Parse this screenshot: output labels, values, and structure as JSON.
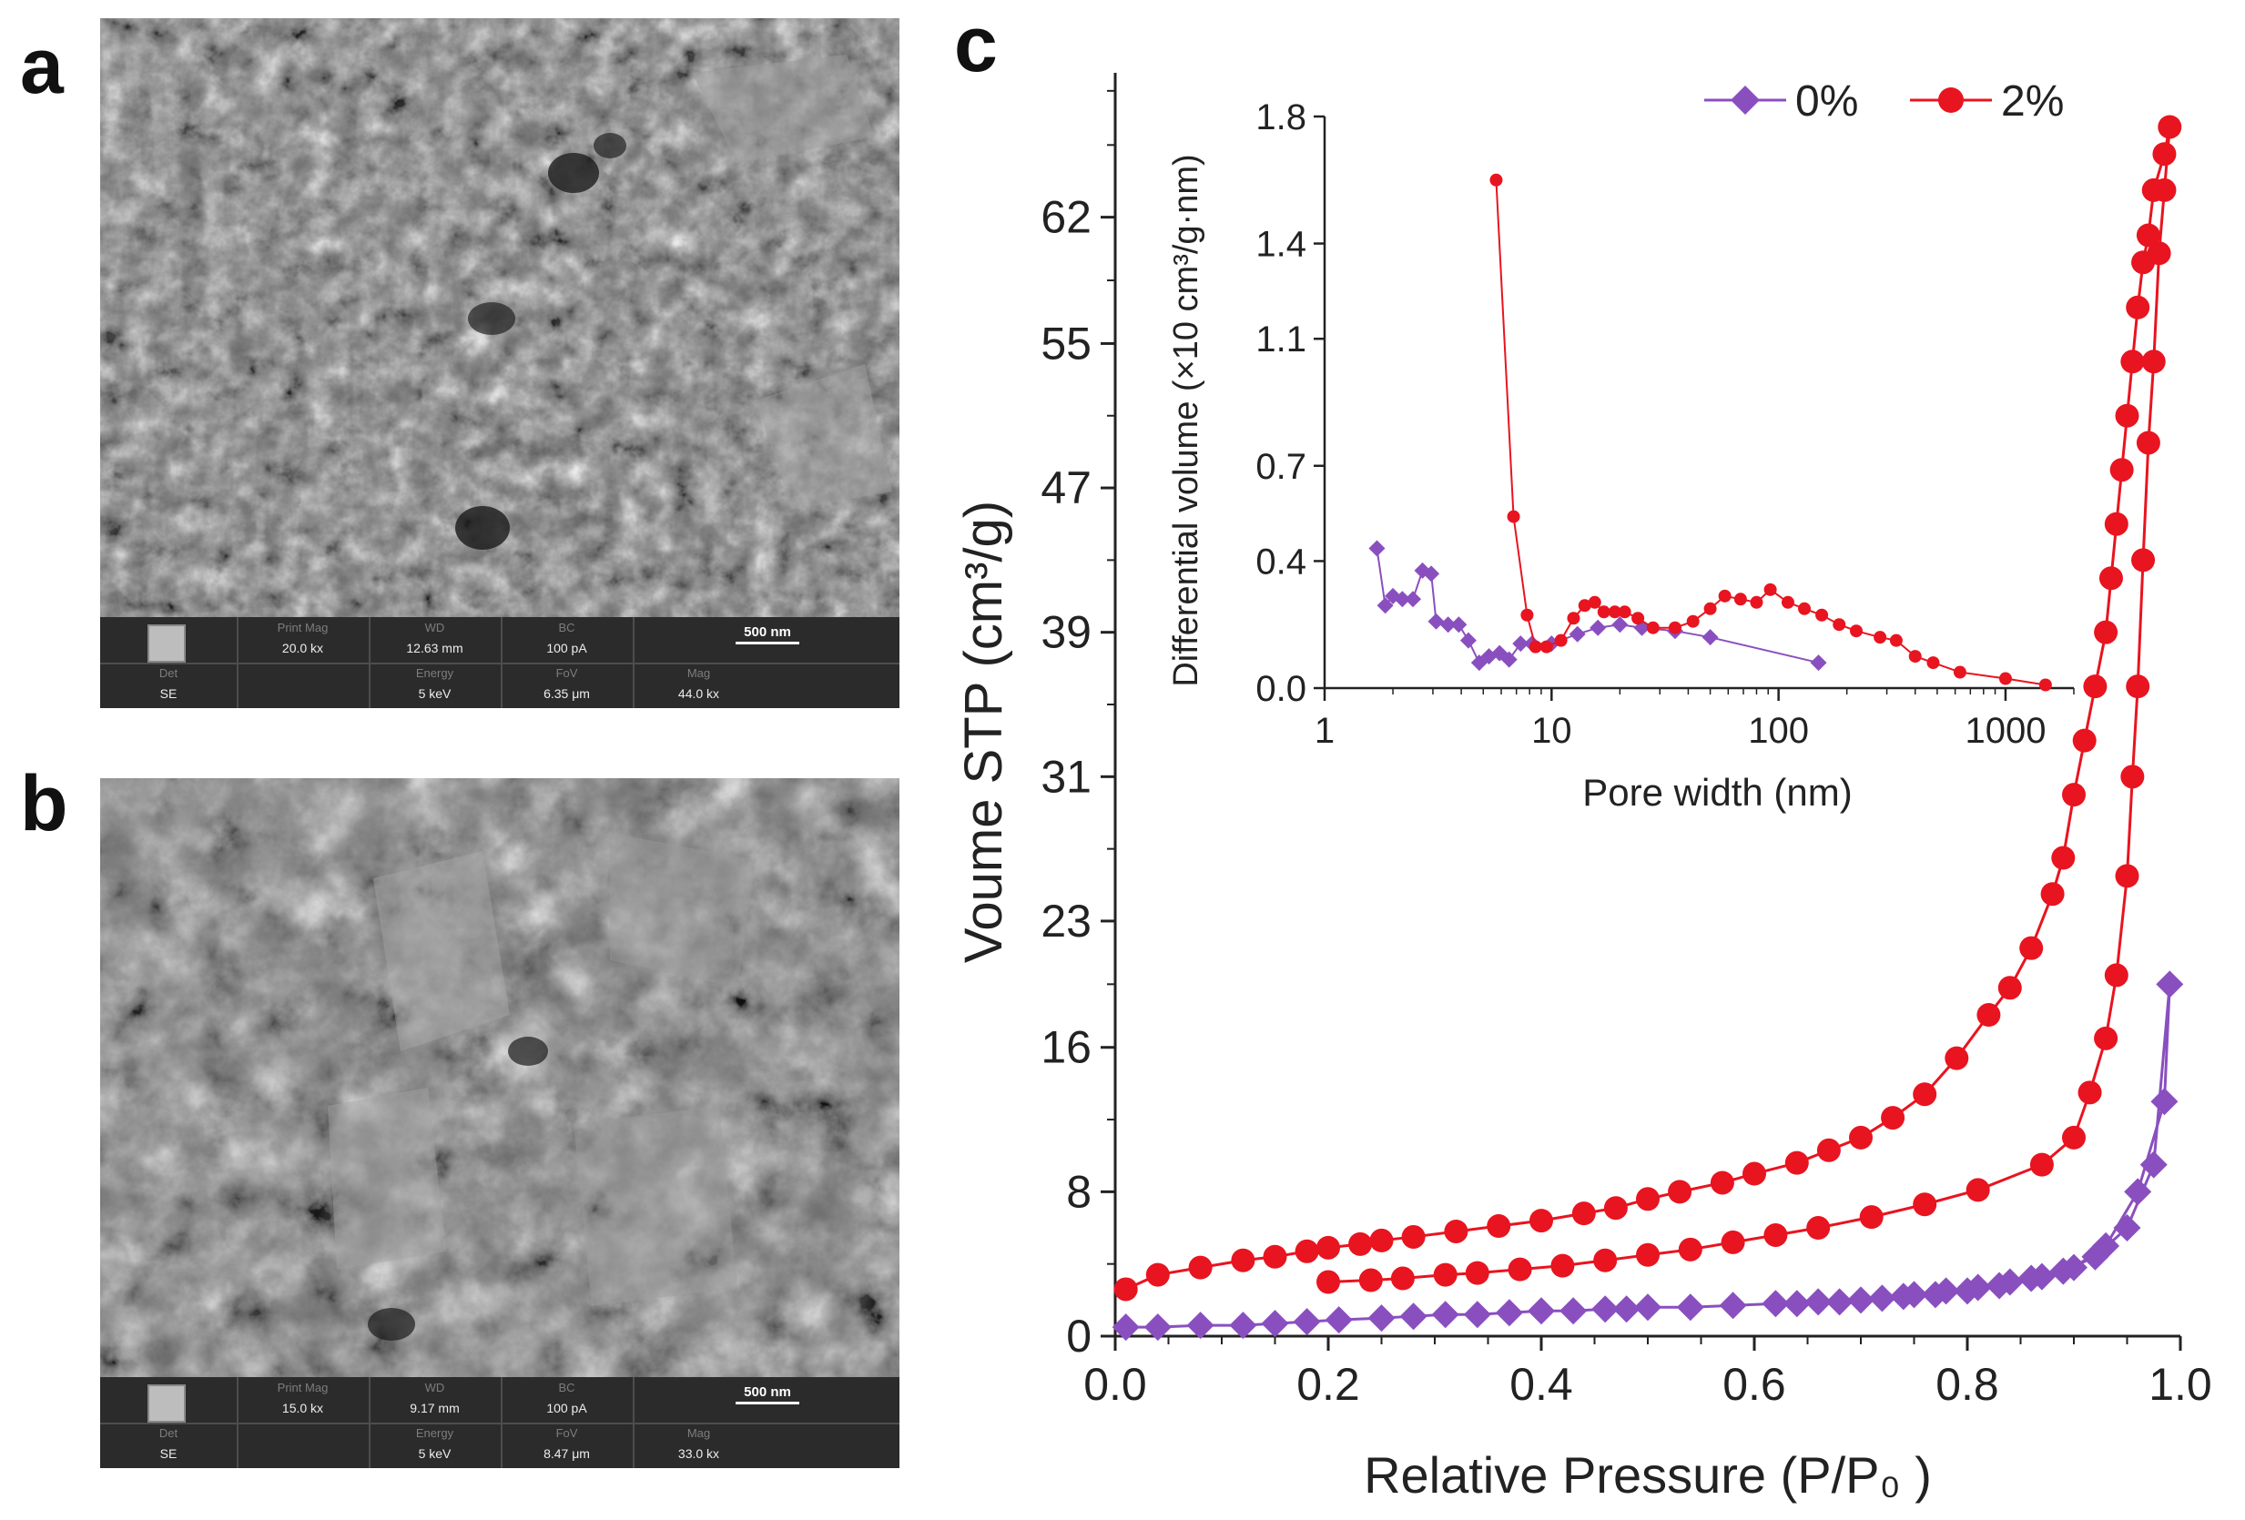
{
  "panels": {
    "a": "a",
    "b": "b",
    "c": "c"
  },
  "sem_headers": {
    "print_mag": "Print Mag",
    "wd": "WD",
    "bc": "BC",
    "det": "Det",
    "energy": "Energy",
    "fov": "FoV",
    "mag": "Mag"
  },
  "sem_a": {
    "print_mag": "20.0 kx",
    "wd": "12.63 mm",
    "bc": "100 pA",
    "scale": "500 nm",
    "det": "SE",
    "energy": "5 keV",
    "fov": "6.35 μm",
    "mag": "44.0 kx"
  },
  "sem_b": {
    "print_mag": "15.0 kx",
    "wd": "9.17 mm",
    "bc": "100 pA",
    "scale": "500 nm",
    "det": "SE",
    "energy": "5 keV",
    "fov": "8.47 μm",
    "mag": "33.0 kx"
  },
  "colors": {
    "purple": "#8a4fbf",
    "red": "#e8141f"
  },
  "chart_data": [
    {
      "type": "line",
      "id": "isotherm",
      "xlabel": "Relative Pressure (P/P₀ )",
      "ylabel": "Voume  STP (cm³/g)",
      "xlim": [
        0,
        1.0
      ],
      "ylim": [
        0,
        70
      ],
      "xticks": [
        0.0,
        0.2,
        0.4,
        0.6,
        0.8,
        1.0
      ],
      "xtick_labels": [
        "0.0",
        "0.2",
        "0.4",
        "0.6",
        "0.8",
        "1.0"
      ],
      "yticks": [
        0,
        8,
        16,
        23,
        31,
        39,
        47,
        55,
        62
      ],
      "ytick_labels": [
        "0",
        "8",
        "16",
        "23",
        "31",
        "39",
        "47",
        "55",
        "62"
      ],
      "legend": [
        "0%",
        "2%"
      ],
      "series": [
        {
          "name": "0%",
          "marker": "diamond",
          "points": [
            [
              0.01,
              0.5
            ],
            [
              0.04,
              0.5
            ],
            [
              0.08,
              0.6
            ],
            [
              0.12,
              0.6
            ],
            [
              0.15,
              0.7
            ],
            [
              0.18,
              0.8
            ],
            [
              0.21,
              0.9
            ],
            [
              0.25,
              1.0
            ],
            [
              0.28,
              1.1
            ],
            [
              0.31,
              1.2
            ],
            [
              0.34,
              1.2
            ],
            [
              0.37,
              1.3
            ],
            [
              0.4,
              1.4
            ],
            [
              0.43,
              1.4
            ],
            [
              0.46,
              1.5
            ],
            [
              0.48,
              1.5
            ],
            [
              0.5,
              1.6
            ],
            [
              0.54,
              1.6
            ],
            [
              0.58,
              1.7
            ],
            [
              0.62,
              1.8
            ],
            [
              0.66,
              1.9
            ],
            [
              0.7,
              2.0
            ],
            [
              0.74,
              2.2
            ],
            [
              0.77,
              2.3
            ],
            [
              0.8,
              2.5
            ],
            [
              0.83,
              2.8
            ],
            [
              0.86,
              3.2
            ],
            [
              0.89,
              3.6
            ],
            [
              0.92,
              4.4
            ],
            [
              0.95,
              6.0
            ],
            [
              0.975,
              9.5
            ],
            [
              0.99,
              19.5
            ],
            [
              0.985,
              13.0
            ],
            [
              0.96,
              8.0
            ],
            [
              0.93,
              5.0
            ],
            [
              0.9,
              3.8
            ],
            [
              0.87,
              3.3
            ],
            [
              0.84,
              3.0
            ],
            [
              0.81,
              2.7
            ],
            [
              0.78,
              2.5
            ],
            [
              0.75,
              2.3
            ],
            [
              0.72,
              2.1
            ],
            [
              0.68,
              1.9
            ],
            [
              0.64,
              1.8
            ]
          ]
        },
        {
          "name": "2%",
          "marker": "circle",
          "points": [
            [
              0.01,
              2.6
            ],
            [
              0.04,
              3.4
            ],
            [
              0.08,
              3.8
            ],
            [
              0.12,
              4.2
            ],
            [
              0.15,
              4.4
            ],
            [
              0.18,
              4.7
            ],
            [
              0.2,
              4.9
            ],
            [
              0.23,
              5.1
            ],
            [
              0.25,
              5.3
            ],
            [
              0.28,
              5.5
            ],
            [
              0.32,
              5.8
            ],
            [
              0.36,
              6.1
            ],
            [
              0.4,
              6.4
            ],
            [
              0.44,
              6.8
            ],
            [
              0.47,
              7.1
            ],
            [
              0.5,
              7.6
            ],
            [
              0.53,
              8.0
            ],
            [
              0.57,
              8.5
            ],
            [
              0.6,
              9.0
            ],
            [
              0.64,
              9.6
            ],
            [
              0.67,
              10.3
            ],
            [
              0.7,
              11.0
            ],
            [
              0.73,
              12.1
            ],
            [
              0.76,
              13.4
            ],
            [
              0.79,
              15.4
            ],
            [
              0.82,
              17.8
            ],
            [
              0.84,
              19.3
            ],
            [
              0.86,
              21.5
            ],
            [
              0.88,
              24.5
            ],
            [
              0.89,
              26.5
            ],
            [
              0.9,
              30.0
            ],
            [
              0.91,
              33.0
            ],
            [
              0.92,
              36.0
            ],
            [
              0.93,
              39.0
            ],
            [
              0.935,
              42.0
            ],
            [
              0.94,
              45.0
            ],
            [
              0.945,
              48.0
            ],
            [
              0.95,
              51.0
            ],
            [
              0.955,
              54.0
            ],
            [
              0.96,
              57.0
            ],
            [
              0.965,
              59.5
            ],
            [
              0.97,
              61.0
            ],
            [
              0.975,
              63.5
            ],
            [
              0.985,
              65.5
            ],
            [
              0.99,
              67.0
            ],
            [
              0.985,
              63.5
            ],
            [
              0.98,
              60.0
            ],
            [
              0.975,
              54.0
            ],
            [
              0.97,
              49.5
            ],
            [
              0.965,
              43.0
            ],
            [
              0.96,
              36.0
            ],
            [
              0.955,
              31.0
            ],
            [
              0.95,
              25.5
            ],
            [
              0.94,
              20.0
            ],
            [
              0.93,
              16.5
            ],
            [
              0.915,
              13.5
            ],
            [
              0.9,
              11.0
            ],
            [
              0.87,
              9.5
            ],
            [
              0.81,
              8.1
            ],
            [
              0.76,
              7.3
            ],
            [
              0.71,
              6.6
            ],
            [
              0.66,
              6.0
            ],
            [
              0.62,
              5.6
            ],
            [
              0.58,
              5.2
            ],
            [
              0.54,
              4.8
            ],
            [
              0.5,
              4.5
            ],
            [
              0.46,
              4.2
            ],
            [
              0.42,
              3.9
            ],
            [
              0.38,
              3.7
            ],
            [
              0.34,
              3.5
            ],
            [
              0.31,
              3.4
            ],
            [
              0.27,
              3.2
            ],
            [
              0.24,
              3.1
            ],
            [
              0.2,
              3.0
            ]
          ]
        }
      ]
    },
    {
      "type": "line",
      "id": "inset",
      "xscale": "log",
      "xlabel": "Pore width (nm)",
      "ylabel": "Differential volume (×10 cm³/g·nm)",
      "xlim": [
        1,
        2000
      ],
      "ylim": [
        0,
        1.8
      ],
      "xticks": [
        1,
        10,
        100,
        1000
      ],
      "xtick_labels": [
        "1",
        "10",
        "100",
        "1000"
      ],
      "yticks": [
        0,
        0.4,
        0.7,
        1.1,
        1.4,
        1.8
      ],
      "ytick_labels": [
        "0.0",
        "0.4",
        "0.7",
        "1.1",
        "1.4",
        "1.8"
      ],
      "series": [
        {
          "name": "0%",
          "marker": "diamond",
          "points": [
            [
              1.7,
              0.44
            ],
            [
              1.85,
              0.26
            ],
            [
              2.0,
              0.29
            ],
            [
              2.2,
              0.28
            ],
            [
              2.45,
              0.28
            ],
            [
              2.7,
              0.37
            ],
            [
              2.95,
              0.36
            ],
            [
              3.1,
              0.21
            ],
            [
              3.5,
              0.2
            ],
            [
              3.9,
              0.2
            ],
            [
              4.3,
              0.15
            ],
            [
              4.8,
              0.08
            ],
            [
              5.3,
              0.1
            ],
            [
              5.9,
              0.11
            ],
            [
              6.5,
              0.09
            ],
            [
              7.3,
              0.14
            ],
            [
              8.2,
              0.14
            ],
            [
              10,
              0.14
            ],
            [
              13,
              0.17
            ],
            [
              16,
              0.19
            ],
            [
              20,
              0.2
            ],
            [
              25,
              0.19
            ],
            [
              35,
              0.18
            ],
            [
              50,
              0.16
            ],
            [
              150,
              0.08
            ]
          ]
        },
        {
          "name": "2%",
          "marker": "circle",
          "points": [
            [
              5.7,
              1.6
            ],
            [
              6.8,
              0.54
            ],
            [
              7.8,
              0.23
            ],
            [
              8.5,
              0.13
            ],
            [
              9.5,
              0.13
            ],
            [
              11,
              0.15
            ],
            [
              12.5,
              0.22
            ],
            [
              14,
              0.26
            ],
            [
              15.5,
              0.27
            ],
            [
              17,
              0.24
            ],
            [
              19,
              0.24
            ],
            [
              21,
              0.24
            ],
            [
              24,
              0.22
            ],
            [
              28,
              0.19
            ],
            [
              35,
              0.19
            ],
            [
              42,
              0.21
            ],
            [
              50,
              0.25
            ],
            [
              58,
              0.29
            ],
            [
              68,
              0.28
            ],
            [
              80,
              0.27
            ],
            [
              92,
              0.31
            ],
            [
              110,
              0.27
            ],
            [
              130,
              0.25
            ],
            [
              155,
              0.23
            ],
            [
              185,
              0.2
            ],
            [
              220,
              0.18
            ],
            [
              280,
              0.16
            ],
            [
              330,
              0.15
            ],
            [
              400,
              0.1
            ],
            [
              480,
              0.08
            ],
            [
              630,
              0.05
            ],
            [
              1000,
              0.03
            ],
            [
              1500,
              0.01
            ]
          ]
        }
      ]
    }
  ]
}
